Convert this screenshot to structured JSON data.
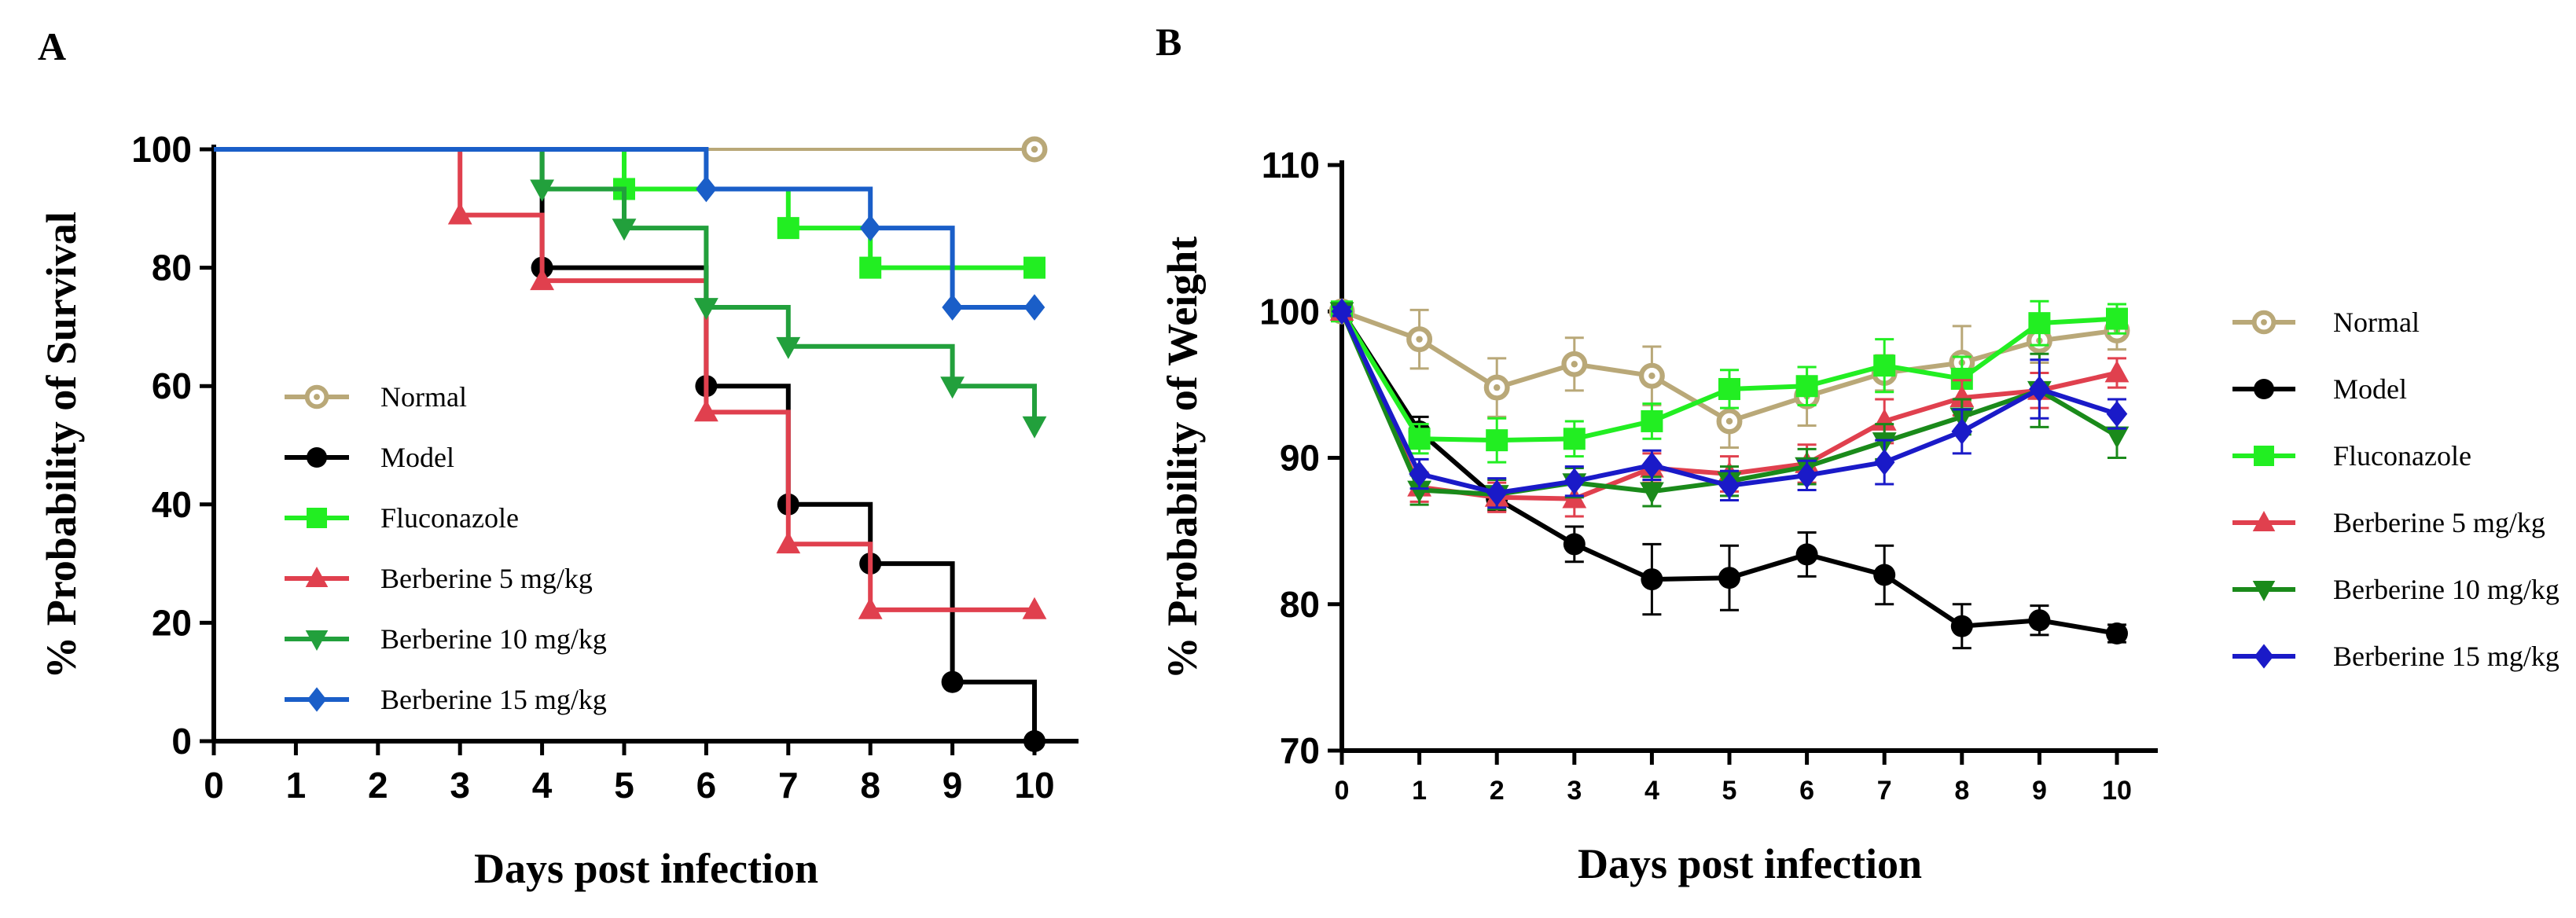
{
  "chart_data": [
    {
      "panel": "A",
      "type": "line",
      "step": true,
      "xlabel": "Days post infection",
      "ylabel": "% Probability of Survival",
      "xlim": [
        0,
        10
      ],
      "ylim": [
        0,
        100
      ],
      "xticks": [
        0,
        1,
        2,
        3,
        4,
        5,
        6,
        7,
        8,
        9,
        10
      ],
      "yticks": [
        0,
        20,
        40,
        60,
        80,
        100
      ],
      "legend_position": "center-left",
      "series": [
        {
          "name": "Normal",
          "color": "#b9a878",
          "marker": "circle-open",
          "points": [
            [
              0,
              100
            ],
            [
              10,
              100
            ]
          ],
          "markers": [
            [
              10,
              100
            ]
          ]
        },
        {
          "name": "Model",
          "color": "#000000",
          "marker": "circle",
          "points": [
            [
              0,
              100
            ],
            [
              4,
              100
            ],
            [
              4,
              80
            ],
            [
              6,
              80
            ],
            [
              6,
              60
            ],
            [
              7,
              60
            ],
            [
              7,
              40
            ],
            [
              8,
              40
            ],
            [
              8,
              30
            ],
            [
              9,
              30
            ],
            [
              9,
              10
            ],
            [
              10,
              10
            ],
            [
              10,
              0
            ]
          ],
          "markers": [
            [
              4,
              80
            ],
            [
              6,
              60
            ],
            [
              7,
              40
            ],
            [
              8,
              30
            ],
            [
              9,
              10
            ],
            [
              10,
              0
            ]
          ]
        },
        {
          "name": "Fluconazole",
          "color": "#22ee22",
          "marker": "square",
          "points": [
            [
              0,
              100
            ],
            [
              5,
              100
            ],
            [
              5,
              93.3
            ],
            [
              7,
              93.3
            ],
            [
              7,
              86.7
            ],
            [
              8,
              86.7
            ],
            [
              8,
              80
            ],
            [
              10,
              80
            ]
          ],
          "markers": [
            [
              5,
              93.3
            ],
            [
              7,
              86.7
            ],
            [
              8,
              80
            ],
            [
              10,
              80
            ]
          ]
        },
        {
          "name": "Berberine 5 mg/kg",
          "color": "#e0404e",
          "marker": "triangle-up",
          "points": [
            [
              0,
              100
            ],
            [
              3,
              100
            ],
            [
              3,
              88.9
            ],
            [
              4,
              88.9
            ],
            [
              4,
              77.8
            ],
            [
              6,
              77.8
            ],
            [
              6,
              55.6
            ],
            [
              7,
              55.6
            ],
            [
              7,
              33.3
            ],
            [
              8,
              33.3
            ],
            [
              8,
              22.2
            ],
            [
              10,
              22.2
            ]
          ],
          "markers": [
            [
              3,
              88.9
            ],
            [
              4,
              77.8
            ],
            [
              6,
              55.6
            ],
            [
              7,
              33.3
            ],
            [
              8,
              22.2
            ],
            [
              10,
              22.2
            ]
          ]
        },
        {
          "name": "Berberine 10 mg/kg",
          "color": "#22a03c",
          "marker": "triangle-down",
          "points": [
            [
              0,
              100
            ],
            [
              4,
              100
            ],
            [
              4,
              93.3
            ],
            [
              5,
              93.3
            ],
            [
              5,
              86.7
            ],
            [
              6,
              86.7
            ],
            [
              6,
              73.3
            ],
            [
              7,
              73.3
            ],
            [
              7,
              66.7
            ],
            [
              9,
              66.7
            ],
            [
              9,
              60
            ],
            [
              10,
              60
            ],
            [
              10,
              53.3
            ]
          ],
          "markers": [
            [
              4,
              93.3
            ],
            [
              5,
              86.7
            ],
            [
              6,
              73.3
            ],
            [
              7,
              66.7
            ],
            [
              9,
              60
            ],
            [
              10,
              53.3
            ]
          ]
        },
        {
          "name": "Berberine 15 mg/kg",
          "color": "#1a5ec8",
          "marker": "diamond",
          "points": [
            [
              0,
              100
            ],
            [
              6,
              100
            ],
            [
              6,
              93.3
            ],
            [
              8,
              93.3
            ],
            [
              8,
              86.7
            ],
            [
              9,
              86.7
            ],
            [
              9,
              73.3
            ],
            [
              10,
              73.3
            ]
          ],
          "markers": [
            [
              6,
              93.3
            ],
            [
              8,
              86.7
            ],
            [
              9,
              73.3
            ],
            [
              10,
              73.3
            ]
          ]
        }
      ]
    },
    {
      "panel": "B",
      "type": "line",
      "xlabel": "Days post infection",
      "ylabel": "% Probability of Weight",
      "xlim": [
        0,
        10
      ],
      "ylim": [
        70,
        110
      ],
      "xticks": [
        0,
        1,
        2,
        3,
        4,
        5,
        6,
        7,
        8,
        9,
        10
      ],
      "yticks": [
        70,
        80,
        90,
        100,
        110
      ],
      "legend_position": "right",
      "x": [
        0,
        1,
        2,
        3,
        4,
        5,
        6,
        7,
        8,
        9,
        10
      ],
      "series": [
        {
          "name": "Normal",
          "color": "#b9a878",
          "marker": "circle-open",
          "values": [
            100,
            98.1,
            94.8,
            96.4,
            95.6,
            92.5,
            94.2,
            95.8,
            96.5,
            98.0,
            98.7
          ],
          "errors": [
            0.6,
            2.0,
            2.0,
            1.8,
            2.0,
            1.8,
            2.0,
            1.2,
            2.5,
            1.5,
            1.3
          ]
        },
        {
          "name": "Model",
          "color": "#000000",
          "marker": "circle",
          "values": [
            100,
            91.8,
            87.2,
            84.1,
            81.7,
            81.8,
            83.4,
            82.0,
            78.5,
            78.9,
            78.0
          ],
          "errors": [
            0.3,
            1.0,
            0.8,
            1.2,
            2.4,
            2.2,
            1.5,
            2.0,
            1.5,
            1.0,
            0.6
          ]
        },
        {
          "name": "Fluconazole",
          "color": "#22ee22",
          "marker": "square",
          "values": [
            100,
            91.3,
            91.2,
            91.3,
            92.5,
            94.7,
            94.9,
            96.3,
            95.4,
            99.2,
            99.5
          ],
          "errors": [
            0.3,
            1.0,
            1.5,
            1.2,
            1.2,
            1.3,
            1.3,
            1.8,
            1.5,
            1.5,
            1.0
          ]
        },
        {
          "name": "Berberine 5 mg/kg",
          "color": "#e0404e",
          "marker": "triangle-up",
          "values": [
            100,
            88.0,
            87.3,
            87.2,
            89.3,
            88.9,
            89.6,
            92.5,
            94.1,
            94.6,
            95.8
          ],
          "errors": [
            0.3,
            1.0,
            1.0,
            1.2,
            1.0,
            1.2,
            1.3,
            1.5,
            1.2,
            1.2,
            1.0
          ]
        },
        {
          "name": "Berberine 10 mg/kg",
          "color": "#1a8a1a",
          "marker": "triangle-down",
          "values": [
            100,
            87.8,
            87.5,
            88.3,
            87.7,
            88.4,
            89.4,
            91.1,
            92.8,
            94.6,
            91.5
          ],
          "errors": [
            0.3,
            1.0,
            1.0,
            1.0,
            1.0,
            1.0,
            1.2,
            1.2,
            1.2,
            2.5,
            1.5
          ]
        },
        {
          "name": "Berberine 15 mg/kg",
          "color": "#1a1ac8",
          "marker": "diamond",
          "values": [
            100,
            88.9,
            87.6,
            88.4,
            89.5,
            88.1,
            88.8,
            89.7,
            91.8,
            94.7,
            93.0
          ],
          "errors": [
            0.3,
            1.0,
            1.0,
            1.0,
            1.0,
            1.0,
            1.0,
            1.5,
            1.5,
            2.0,
            1.0
          ]
        }
      ]
    }
  ],
  "panels": {
    "a_label": "A",
    "b_label": "B"
  }
}
